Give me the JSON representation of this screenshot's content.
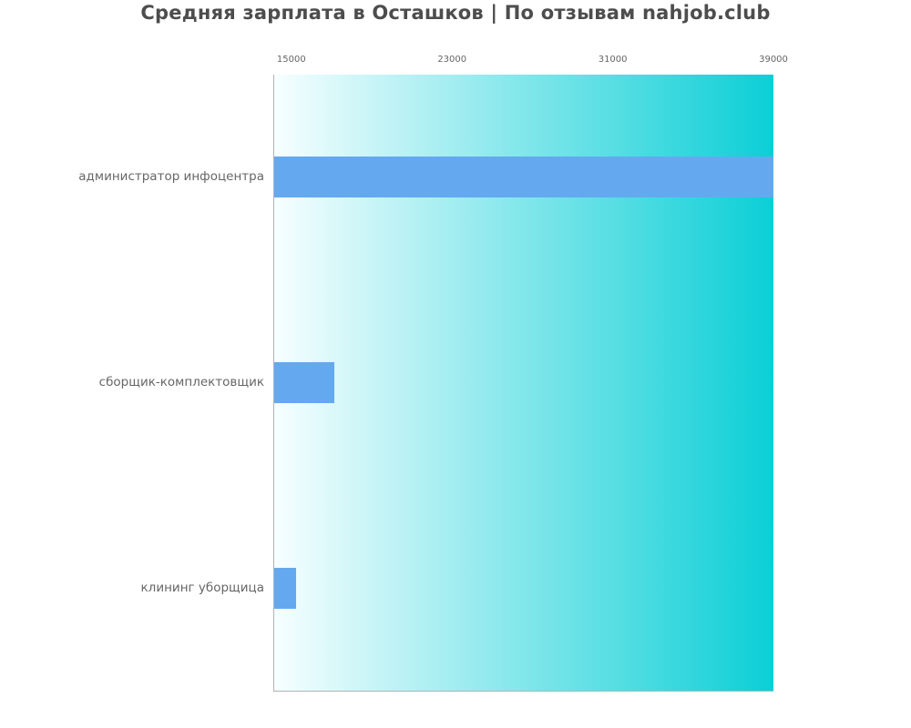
{
  "title": "Средняя зарплата в Осташков | По отзывам nahjob.club",
  "chart_data": {
    "type": "bar",
    "orientation": "horizontal",
    "title": "Средняя зарплата в Осташков | По отзывам nahjob.club",
    "categories": [
      "администратор инфоцентра",
      "сборщик-комплектовщик",
      "клининг уборщица"
    ],
    "values": [
      39000,
      17100,
      15200
    ],
    "xlabel": "",
    "ylabel": "",
    "xlim": [
      14100,
      39000
    ],
    "xticks": [
      15000,
      23000,
      31000,
      39000
    ],
    "grid": false,
    "legend": "none",
    "bar_color": "#64a9ef",
    "plot_bg_gradient_left": "#f7feff",
    "plot_bg_gradient_right": "#0bcfd6",
    "axis_color": "#b3b3b3",
    "label_color": "#666666",
    "title_color": "#4d4d4d"
  }
}
